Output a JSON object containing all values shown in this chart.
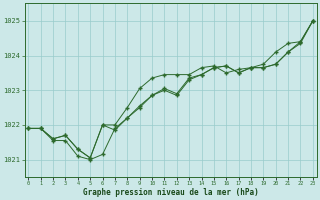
{
  "hours": [
    0,
    1,
    2,
    3,
    4,
    5,
    6,
    7,
    8,
    9,
    10,
    11,
    12,
    13,
    14,
    15,
    16,
    17,
    18,
    19,
    20,
    21,
    22,
    23
  ],
  "line1": [
    1021.9,
    1021.9,
    1021.6,
    1021.7,
    1021.3,
    1021.05,
    1022.0,
    1021.85,
    1022.2,
    1022.5,
    1022.85,
    1023.05,
    1022.9,
    1023.35,
    1023.45,
    1023.65,
    1023.7,
    1023.5,
    1023.65,
    1023.65,
    1023.75,
    1024.1,
    1024.4,
    1025.0
  ],
  "line2": [
    1021.9,
    1021.9,
    1021.6,
    1021.7,
    1021.3,
    1021.05,
    1022.0,
    1022.0,
    1022.5,
    1023.05,
    1023.35,
    1023.45,
    1023.45,
    1023.45,
    1023.65,
    1023.7,
    1023.5,
    1023.6,
    1023.65,
    1023.75,
    1024.1,
    1024.35,
    1024.4,
    1025.0
  ],
  "line3": [
    1021.9,
    1021.9,
    1021.55,
    1021.55,
    1021.1,
    1021.0,
    1021.15,
    1021.9,
    1022.2,
    1022.55,
    1022.85,
    1023.0,
    1022.85,
    1023.3,
    1023.45,
    1023.65,
    1023.7,
    1023.5,
    1023.65,
    1023.65,
    1023.75,
    1024.1,
    1024.35,
    1025.0
  ],
  "line_color": "#2d6a2d",
  "bg_color": "#cce8e8",
  "grid_color": "#99cccc",
  "xlabel": "Graphe pression niveau de la mer (hPa)",
  "xlabel_color": "#1a4a1a",
  "ylim_min": 1020.5,
  "ylim_max": 1025.5,
  "yticks": [
    1021,
    1022,
    1023,
    1024,
    1025
  ],
  "xticks": [
    0,
    1,
    2,
    3,
    4,
    5,
    6,
    7,
    8,
    9,
    10,
    11,
    12,
    13,
    14,
    15,
    16,
    17,
    18,
    19,
    20,
    21,
    22,
    23
  ]
}
